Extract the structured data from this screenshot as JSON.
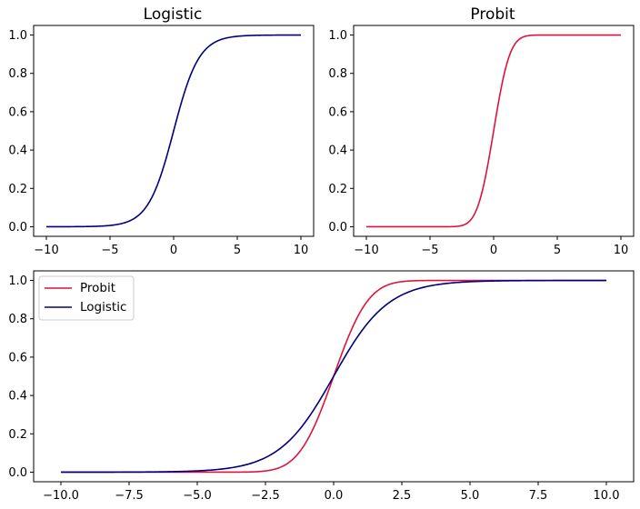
{
  "chart_data": [
    {
      "type": "line",
      "title": "Logistic",
      "xlabel": "",
      "ylabel": "",
      "xlim": [
        -11,
        11
      ],
      "ylim": [
        -0.05,
        1.05
      ],
      "xticks": [
        -10,
        -5,
        0,
        5,
        10
      ],
      "xtick_labels": [
        "−10",
        "−5",
        "0",
        "5",
        "10"
      ],
      "yticks": [
        0.0,
        0.2,
        0.4,
        0.6,
        0.8,
        1.0
      ],
      "ytick_labels": [
        "0.0",
        "0.2",
        "0.4",
        "0.6",
        "0.8",
        "1.0"
      ],
      "grid": false,
      "series": [
        {
          "function": "logistic",
          "color": "#00007f",
          "x": [
            -10,
            -8,
            -6,
            -5,
            -4,
            -3,
            -2,
            -1.5,
            -1,
            -0.5,
            0,
            0.5,
            1,
            1.5,
            2,
            3,
            4,
            5,
            6,
            8,
            10
          ],
          "y": [
            4.54e-05,
            0.000335,
            0.00247,
            0.00669,
            0.018,
            0.0474,
            0.1192,
            0.1824,
            0.2689,
            0.3775,
            0.5,
            0.6225,
            0.7311,
            0.8176,
            0.8808,
            0.9526,
            0.982,
            0.9933,
            0.9975,
            0.9997,
            1.0
          ]
        }
      ]
    },
    {
      "type": "line",
      "title": "Probit",
      "xlabel": "",
      "ylabel": "",
      "xlim": [
        -11,
        11
      ],
      "ylim": [
        -0.05,
        1.05
      ],
      "xticks": [
        -10,
        -5,
        0,
        5,
        10
      ],
      "xtick_labels": [
        "−10",
        "−5",
        "0",
        "5",
        "10"
      ],
      "yticks": [
        0.0,
        0.2,
        0.4,
        0.6,
        0.8,
        1.0
      ],
      "ytick_labels": [
        "0.0",
        "0.2",
        "0.4",
        "0.6",
        "0.8",
        "1.0"
      ],
      "grid": false,
      "series": [
        {
          "function": "probit",
          "color": "#dc143c",
          "x": [
            -10,
            -5,
            -3,
            -2.5,
            -2,
            -1.5,
            -1,
            -0.5,
            0,
            0.5,
            1,
            1.5,
            2,
            2.5,
            3,
            5,
            10
          ],
          "y": [
            0.0,
            0.0,
            0.00135,
            0.0062,
            0.0228,
            0.0668,
            0.1587,
            0.3085,
            0.5,
            0.6915,
            0.8413,
            0.9332,
            0.9772,
            0.9938,
            0.99865,
            1.0,
            1.0
          ]
        }
      ]
    },
    {
      "type": "line",
      "title": "",
      "xlabel": "",
      "ylabel": "",
      "xlim": [
        -11,
        11
      ],
      "ylim": [
        -0.05,
        1.05
      ],
      "xticks": [
        -10,
        -7.5,
        -5,
        -2.5,
        0,
        2.5,
        5,
        7.5,
        10
      ],
      "xtick_labels": [
        "−10.0",
        "−7.5",
        "−5.0",
        "−2.5",
        "0.0",
        "2.5",
        "5.0",
        "7.5",
        "10.0"
      ],
      "yticks": [
        0.0,
        0.2,
        0.4,
        0.6,
        0.8,
        1.0
      ],
      "ytick_labels": [
        "0.0",
        "0.2",
        "0.4",
        "0.6",
        "0.8",
        "1.0"
      ],
      "grid": false,
      "legend": "top-left",
      "series": [
        {
          "name": "Probit",
          "function": "probit",
          "color": "#dc143c",
          "x": [
            -10,
            -5,
            -3,
            -2.5,
            -2,
            -1.5,
            -1,
            -0.5,
            0,
            0.5,
            1,
            1.5,
            2,
            2.5,
            3,
            5,
            10
          ],
          "y": [
            0.0,
            0.0,
            0.00135,
            0.0062,
            0.0228,
            0.0668,
            0.1587,
            0.3085,
            0.5,
            0.6915,
            0.8413,
            0.9332,
            0.9772,
            0.9938,
            0.99865,
            1.0,
            1.0
          ]
        },
        {
          "name": "Logistic",
          "function": "logistic",
          "color": "#00007f",
          "x": [
            -10,
            -8,
            -6,
            -5,
            -4,
            -3,
            -2,
            -1.5,
            -1,
            -0.5,
            0,
            0.5,
            1,
            1.5,
            2,
            3,
            4,
            5,
            6,
            8,
            10
          ],
          "y": [
            4.54e-05,
            0.000335,
            0.00247,
            0.00669,
            0.018,
            0.0474,
            0.1192,
            0.1824,
            0.2689,
            0.3775,
            0.5,
            0.6225,
            0.7311,
            0.8176,
            0.8808,
            0.9526,
            0.982,
            0.9933,
            0.9975,
            0.9997,
            1.0
          ]
        }
      ]
    }
  ]
}
